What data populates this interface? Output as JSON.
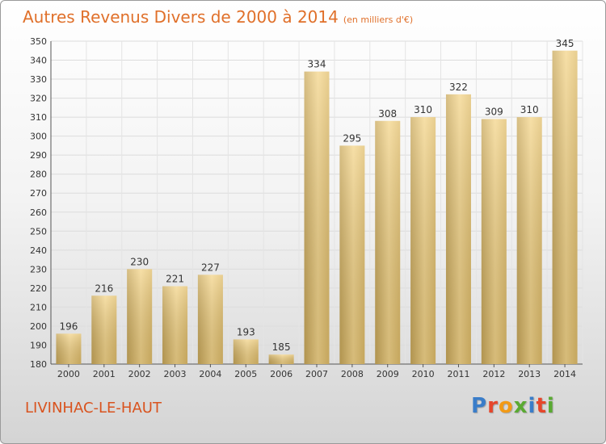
{
  "header": {
    "title": "Autres Revenus Divers de 2000 à 2014",
    "unit": "(en milliers d'€)"
  },
  "footer": {
    "place": "LIVINHAC-LE-HAUT",
    "logo": [
      "P",
      "r",
      "o",
      "x",
      "i",
      "t",
      "i"
    ]
  },
  "chart_data": {
    "type": "bar",
    "title": "Autres Revenus Divers de 2000 à 2014",
    "unit": "(en milliers d'€)",
    "categories": [
      "2000",
      "2001",
      "2002",
      "2003",
      "2004",
      "2005",
      "2006",
      "2007",
      "2008",
      "2009",
      "2010",
      "2011",
      "2012",
      "2013",
      "2014"
    ],
    "values": [
      196,
      216,
      230,
      221,
      227,
      193,
      185,
      334,
      295,
      308,
      310,
      322,
      309,
      310,
      345
    ],
    "ylim": [
      180,
      350
    ],
    "yticks": [
      180,
      190,
      200,
      210,
      220,
      230,
      240,
      250,
      260,
      270,
      280,
      290,
      300,
      310,
      320,
      330,
      340,
      350
    ],
    "grid": true,
    "bar_color": "#e8c878"
  }
}
